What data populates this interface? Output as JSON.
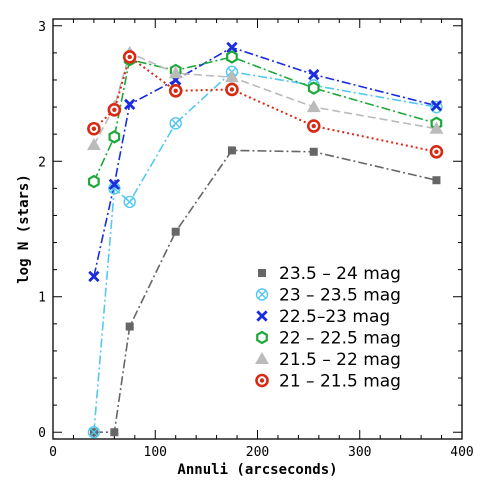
{
  "chart_data": {
    "type": "line",
    "xlabel": "Annuli (arcseconds)",
    "ylabel": "log N (stars)",
    "xlim": [
      0,
      400
    ],
    "ylim": [
      -0.05,
      3.05
    ],
    "xticks": [
      0,
      100,
      200,
      300,
      400
    ],
    "yticks": [
      0,
      1,
      2,
      3
    ],
    "grid": false,
    "legend_position": "bottom-right",
    "series": [
      {
        "name": "23.5 – 24 mag",
        "color": "#666666",
        "marker": "square",
        "dash": "dash-dot",
        "x": [
          40,
          60,
          75,
          120,
          175,
          255,
          375
        ],
        "y": [
          0,
          0,
          0.78,
          1.48,
          2.08,
          2.07,
          1.86
        ]
      },
      {
        "name": "23 – 23.5 mag",
        "color": "#55c8f0",
        "marker": "circle-x",
        "dash": "dash-dot",
        "x": [
          40,
          60,
          75,
          120,
          175,
          255,
          375
        ],
        "y": [
          0,
          1.8,
          1.7,
          2.28,
          2.66,
          2.56,
          2.4
        ]
      },
      {
        "name": "22.5–23 mag",
        "color": "#1a2ce0",
        "marker": "x",
        "dash": "dash-dot",
        "x": [
          40,
          60,
          75,
          120,
          175,
          255,
          375
        ],
        "y": [
          1.15,
          1.83,
          2.42,
          2.6,
          2.84,
          2.64,
          2.41
        ]
      },
      {
        "name": "22 – 22.5 mag",
        "color": "#1ea83a",
        "marker": "hexagon",
        "dash": "dash-dot",
        "x": [
          40,
          60,
          75,
          120,
          175,
          255,
          375
        ],
        "y": [
          1.85,
          2.18,
          2.75,
          2.67,
          2.77,
          2.54,
          2.28
        ]
      },
      {
        "name": "21.5 – 22 mag",
        "color": "#bbbbbb",
        "marker": "triangle",
        "dash": "dashed",
        "x": [
          40,
          60,
          75,
          120,
          175,
          255,
          375
        ],
        "y": [
          2.12,
          2.4,
          2.8,
          2.65,
          2.62,
          2.4,
          2.24
        ]
      },
      {
        "name": "21 – 21.5 mag",
        "color": "#d82a12",
        "marker": "circle-dot",
        "dash": "dotted",
        "x": [
          40,
          60,
          75,
          120,
          175,
          255,
          375
        ],
        "y": [
          2.24,
          2.38,
          2.77,
          2.52,
          2.53,
          2.26,
          2.07
        ]
      }
    ]
  }
}
